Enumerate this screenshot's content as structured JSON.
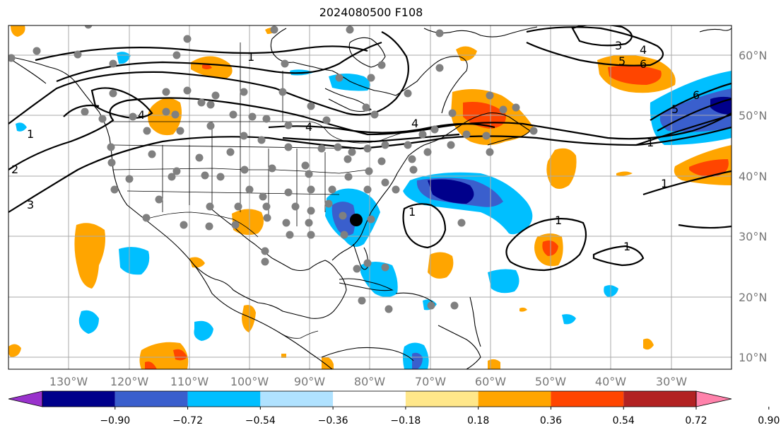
{
  "title": "2024080500 F108",
  "lat_labels": [
    "60°N",
    "50°N",
    "40°N",
    "30°N",
    "20°N",
    "10°N"
  ],
  "lon_labels": [
    "130°W",
    "120°W",
    "110°W",
    "100°W",
    "90°W",
    "80°W",
    "70°W",
    "60°W",
    "50°W",
    "40°W",
    "30°W"
  ],
  "colorbar": {
    "ticks": [
      "−0.90",
      "−0.72",
      "−0.54",
      "−0.36",
      "−0.18",
      "0.18",
      "0.36",
      "0.54",
      "0.72",
      "0.90"
    ],
    "colors": [
      "#9932cc",
      "#00008b",
      "#3a5fcd",
      "#00bfff",
      "#b0e2ff",
      "#ffffff",
      "#ffe78a",
      "#ffa500",
      "#ff4500",
      "#b22222",
      "#ff82ab"
    ]
  },
  "contour_labels": [
    "1",
    "1",
    "2",
    "3",
    "4",
    "4",
    "4",
    "3",
    "4",
    "5",
    "6",
    "5",
    "6",
    "1",
    "1",
    "1",
    "1",
    "1"
  ],
  "colors": {
    "orange": "#ffa500",
    "red": "#ff4500",
    "light_blue": "#00bfff",
    "mid_blue": "#3a5fcd",
    "dark_blue": "#00008b",
    "station_dot": "#808080"
  }
}
